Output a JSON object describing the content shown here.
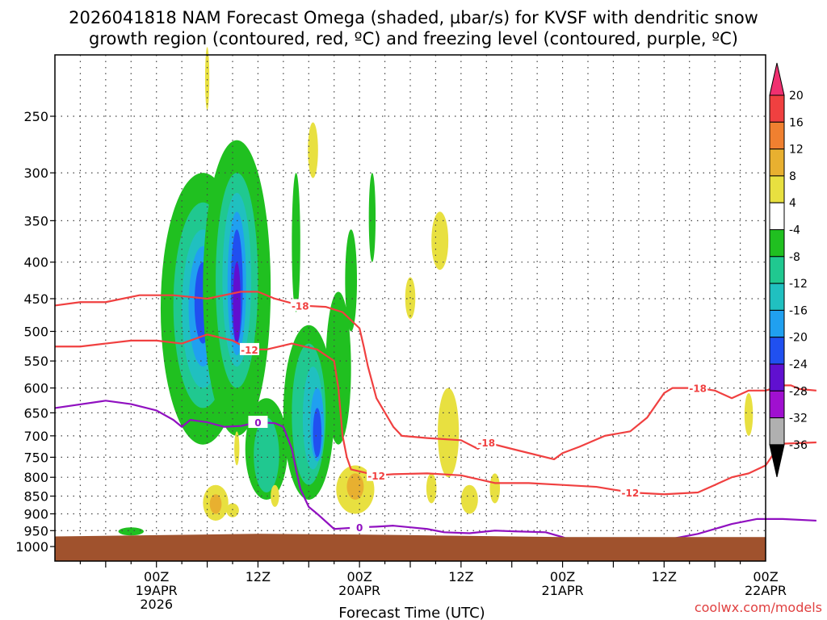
{
  "chart_data": {
    "type": "heatmap",
    "title_line1": "2026041818 NAM Forecast Omega (shaded, µbar/s) for KVSF with dendritic snow",
    "title_line2": "growth region (contoured, red, ºC) and freezing level (contoured, purple, ºC)",
    "xlabel": "Forecast Time (UTC)",
    "credit": "coolwx.com/models",
    "x_range_hours": [
      -6,
      78
    ],
    "y_range_hpa": [
      200,
      1030
    ],
    "y_ticks": [
      "250",
      "300",
      "350",
      "400",
      "450",
      "500",
      "550",
      "600",
      "650",
      "700",
      "750",
      "800",
      "850",
      "900",
      "950",
      "1000"
    ],
    "y_tick_values": [
      250,
      300,
      350,
      400,
      450,
      500,
      550,
      600,
      650,
      700,
      750,
      800,
      850,
      900,
      950,
      1000
    ],
    "x_ticks": [
      {
        "hour": 6,
        "l1": "00Z",
        "l2": "19APR",
        "l3": "2026"
      },
      {
        "hour": 18,
        "l1": "12Z",
        "l2": "",
        "l3": ""
      },
      {
        "hour": 30,
        "l1": "00Z",
        "l2": "20APR",
        "l3": ""
      },
      {
        "hour": 42,
        "l1": "12Z",
        "l2": "",
        "l3": ""
      },
      {
        "hour": 54,
        "l1": "00Z",
        "l2": "21APR",
        "l3": ""
      },
      {
        "hour": 66,
        "l1": "12Z",
        "l2": "",
        "l3": ""
      },
      {
        "hour": 78,
        "l1": "00Z",
        "l2": "22APR",
        "l3": ""
      }
    ],
    "colorbar": {
      "labels": [
        "20",
        "16",
        "12",
        "8",
        "4",
        "-4",
        "-8",
        "-12",
        "-16",
        "-20",
        "-24",
        "-28",
        "-32",
        "-36"
      ],
      "colors": [
        "#f03070",
        "#f04040",
        "#f08030",
        "#e8b030",
        "#e8e040",
        "#ffffff",
        "#20c020",
        "#20c890",
        "#20c0c0",
        "#20a0f0",
        "#2050f0",
        "#6010d0",
        "#a010d0",
        "#b0b0b0",
        "#000000"
      ]
    },
    "ground_color": "#a0522d",
    "contours": [
      {
        "name": "dgz-top",
        "label": "-18",
        "color": "#f04040",
        "points": [
          [
            -6,
            460
          ],
          [
            -3,
            455
          ],
          [
            0,
            455
          ],
          [
            4,
            445
          ],
          [
            8,
            445
          ],
          [
            12,
            450
          ],
          [
            16,
            440
          ],
          [
            18,
            440
          ],
          [
            20,
            450
          ],
          [
            23,
            460
          ],
          [
            26,
            462
          ],
          [
            28,
            470
          ],
          [
            30,
            495
          ],
          [
            30.5,
            525
          ],
          [
            31,
            560
          ],
          [
            32,
            620
          ],
          [
            34,
            680
          ],
          [
            35,
            700
          ],
          [
            38,
            705
          ],
          [
            42,
            710
          ],
          [
            44,
            730
          ],
          [
            45,
            715
          ],
          [
            48,
            730
          ],
          [
            53,
            755
          ],
          [
            54,
            740
          ],
          [
            56,
            725
          ],
          [
            59,
            700
          ],
          [
            62,
            690
          ],
          [
            64,
            660
          ],
          [
            66,
            610
          ],
          [
            67,
            600
          ],
          [
            70,
            600
          ],
          [
            72,
            605
          ],
          [
            74,
            620
          ],
          [
            76,
            605
          ],
          [
            78,
            605
          ],
          [
            80,
            595
          ],
          [
            81,
            595
          ],
          [
            82,
            602
          ],
          [
            84,
            605
          ]
        ],
        "label_hours": [
          22,
          46,
          70
        ]
      },
      {
        "name": "dgz-bottom",
        "label": "-12",
        "color": "#f04040",
        "points": [
          [
            -6,
            525
          ],
          [
            -3,
            525
          ],
          [
            0,
            520
          ],
          [
            3,
            515
          ],
          [
            6,
            515
          ],
          [
            9,
            520
          ],
          [
            12,
            505
          ],
          [
            15,
            515
          ],
          [
            17,
            530
          ],
          [
            19,
            530
          ],
          [
            22,
            520
          ],
          [
            25,
            530
          ],
          [
            27,
            550
          ],
          [
            27.5,
            600
          ],
          [
            28,
            700
          ],
          [
            28.5,
            750
          ],
          [
            29,
            780
          ],
          [
            32,
            795
          ],
          [
            34,
            792
          ],
          [
            38,
            790
          ],
          [
            42,
            795
          ],
          [
            44,
            805
          ],
          [
            46,
            815
          ],
          [
            50,
            815
          ],
          [
            54,
            820
          ],
          [
            58,
            825
          ],
          [
            62,
            840
          ],
          [
            66,
            845
          ],
          [
            70,
            840
          ],
          [
            72,
            820
          ],
          [
            74,
            800
          ],
          [
            76,
            790
          ],
          [
            78,
            770
          ],
          [
            79,
            740
          ],
          [
            80,
            718
          ],
          [
            84,
            715
          ],
          [
            84,
            715
          ]
        ],
        "label_hours": [
          18,
          33,
          61
        ]
      },
      {
        "name": "freezing-level",
        "label": "0",
        "color": "#9010c0",
        "points": [
          [
            -6,
            640
          ],
          [
            0,
            625
          ],
          [
            3,
            632
          ],
          [
            6,
            645
          ],
          [
            8,
            665
          ],
          [
            9,
            680
          ],
          [
            10,
            665
          ],
          [
            12,
            670
          ],
          [
            14,
            680
          ],
          [
            16,
            678
          ],
          [
            18,
            670
          ],
          [
            20,
            672
          ],
          [
            21,
            680
          ],
          [
            22,
            730
          ],
          [
            22.5,
            780
          ],
          [
            23,
            830
          ],
          [
            24,
            880
          ],
          [
            25,
            900
          ],
          [
            27,
            945
          ],
          [
            30,
            940
          ],
          [
            32,
            938
          ],
          [
            34,
            935
          ],
          [
            38,
            945
          ],
          [
            40,
            955
          ],
          [
            43,
            958
          ],
          [
            46,
            950
          ],
          [
            48,
            952
          ],
          [
            52,
            955
          ],
          [
            54,
            970
          ],
          [
            55,
            980
          ]
        ],
        "label_hours": [
          18,
          31
        ]
      },
      {
        "name": "freezing-level-east",
        "label": "",
        "color": "#9010c0",
        "points": [
          [
            66,
            980
          ],
          [
            70,
            960
          ],
          [
            74,
            930
          ],
          [
            77,
            915
          ],
          [
            80,
            915
          ],
          [
            84,
            920
          ]
        ],
        "label_hours": []
      }
    ]
  }
}
